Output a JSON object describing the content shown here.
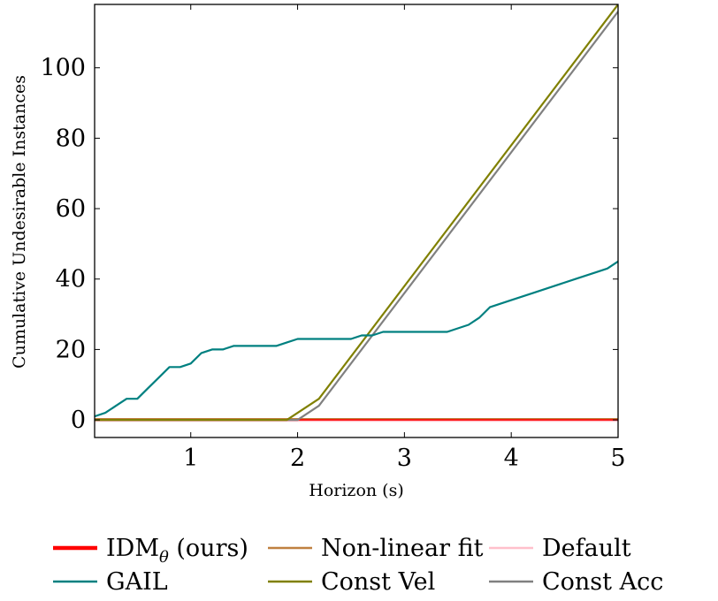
{
  "chart_data": {
    "type": "line",
    "title": "",
    "xlabel": "Horizon (s)",
    "ylabel": "Cumulative Undesirable Instances",
    "xlim": [
      0.1,
      5
    ],
    "ylim": [
      -5,
      118
    ],
    "xticks": [
      1,
      2,
      3,
      4,
      5
    ],
    "yticks": [
      0,
      20,
      40,
      60,
      80,
      100
    ],
    "grid": false,
    "legend_position": "bottom",
    "series": [
      {
        "name": "IDMθ (ours)",
        "name_main": "IDM",
        "name_sub": "θ",
        "name_suffix": " (ours)",
        "color": "#ff0000",
        "x": [
          0.1,
          5
        ],
        "y": [
          0,
          0
        ]
      },
      {
        "name": "GAIL",
        "color": "#008080",
        "x": [
          0.1,
          0.2,
          0.3,
          0.4,
          0.5,
          0.6,
          0.7,
          0.8,
          0.9,
          1.0,
          1.1,
          1.2,
          1.3,
          1.4,
          1.5,
          1.6,
          1.7,
          1.8,
          1.9,
          2.0,
          2.1,
          2.2,
          2.3,
          2.4,
          2.5,
          2.6,
          2.7,
          2.8,
          2.9,
          3.0,
          3.2,
          3.4,
          3.5,
          3.6,
          3.7,
          3.8,
          4.0,
          4.2,
          4.4,
          4.6,
          4.8,
          4.9,
          5.0
        ],
        "y": [
          1,
          2,
          4,
          6,
          6,
          9,
          12,
          15,
          15,
          16,
          19,
          20,
          20,
          21,
          21,
          21,
          21,
          21,
          22,
          23,
          23,
          23,
          23,
          23,
          23,
          24,
          24,
          25,
          25,
          25,
          25,
          25,
          26,
          27,
          29,
          32,
          34,
          36,
          38,
          40,
          42,
          43,
          45
        ]
      },
      {
        "name": "Non-linear fit",
        "color": "#bf8040",
        "x": [
          0.1,
          5
        ],
        "y": [
          0,
          0
        ]
      },
      {
        "name": "Const Vel",
        "color": "#808000",
        "x": [
          0.1,
          1.9,
          2.2,
          5.0
        ],
        "y": [
          0,
          0,
          6,
          118
        ]
      },
      {
        "name": "Default",
        "color": "#ffc0cb",
        "x": [
          0.1,
          5
        ],
        "y": [
          0,
          0
        ]
      },
      {
        "name": "Const Acc",
        "color": "#808080",
        "x": [
          0.1,
          2.0,
          2.2,
          5.0
        ],
        "y": [
          0,
          0,
          4,
          116
        ]
      }
    ]
  }
}
